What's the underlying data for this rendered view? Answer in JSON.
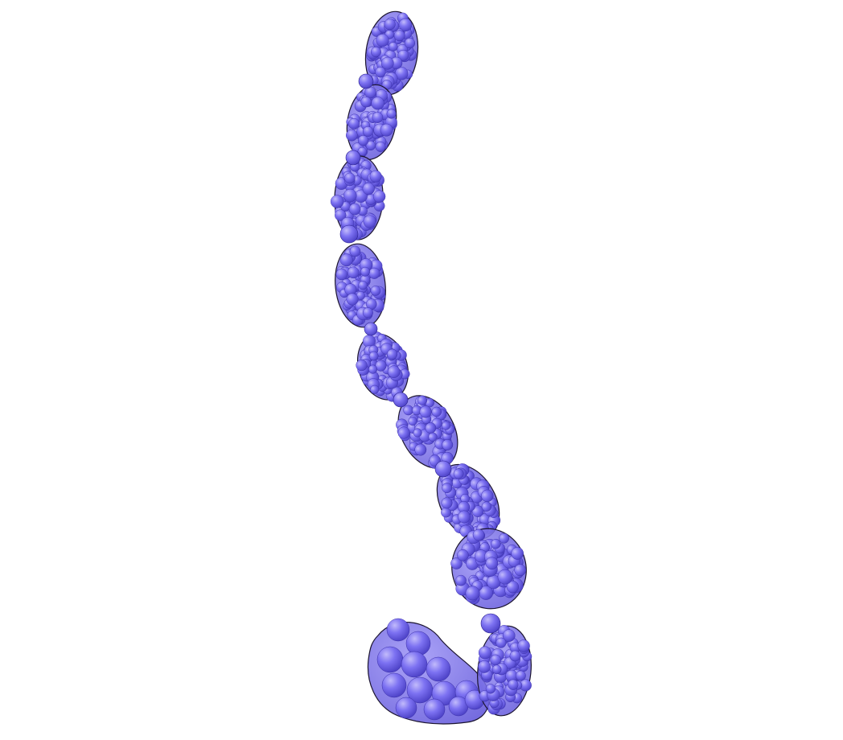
{
  "scene": {
    "background_color": "#ffffff",
    "colors": {
      "surface_fill": "#7a6ef0",
      "surface_highlight": "#a99ff8",
      "surface_shadow": "#4a3fc4",
      "outline": "#1c1530",
      "bead_fill": "#7b70f2",
      "bead_highlight": "#b3abfa"
    },
    "subject": "molecular-surface-bead-chain",
    "segment_count": 10
  }
}
